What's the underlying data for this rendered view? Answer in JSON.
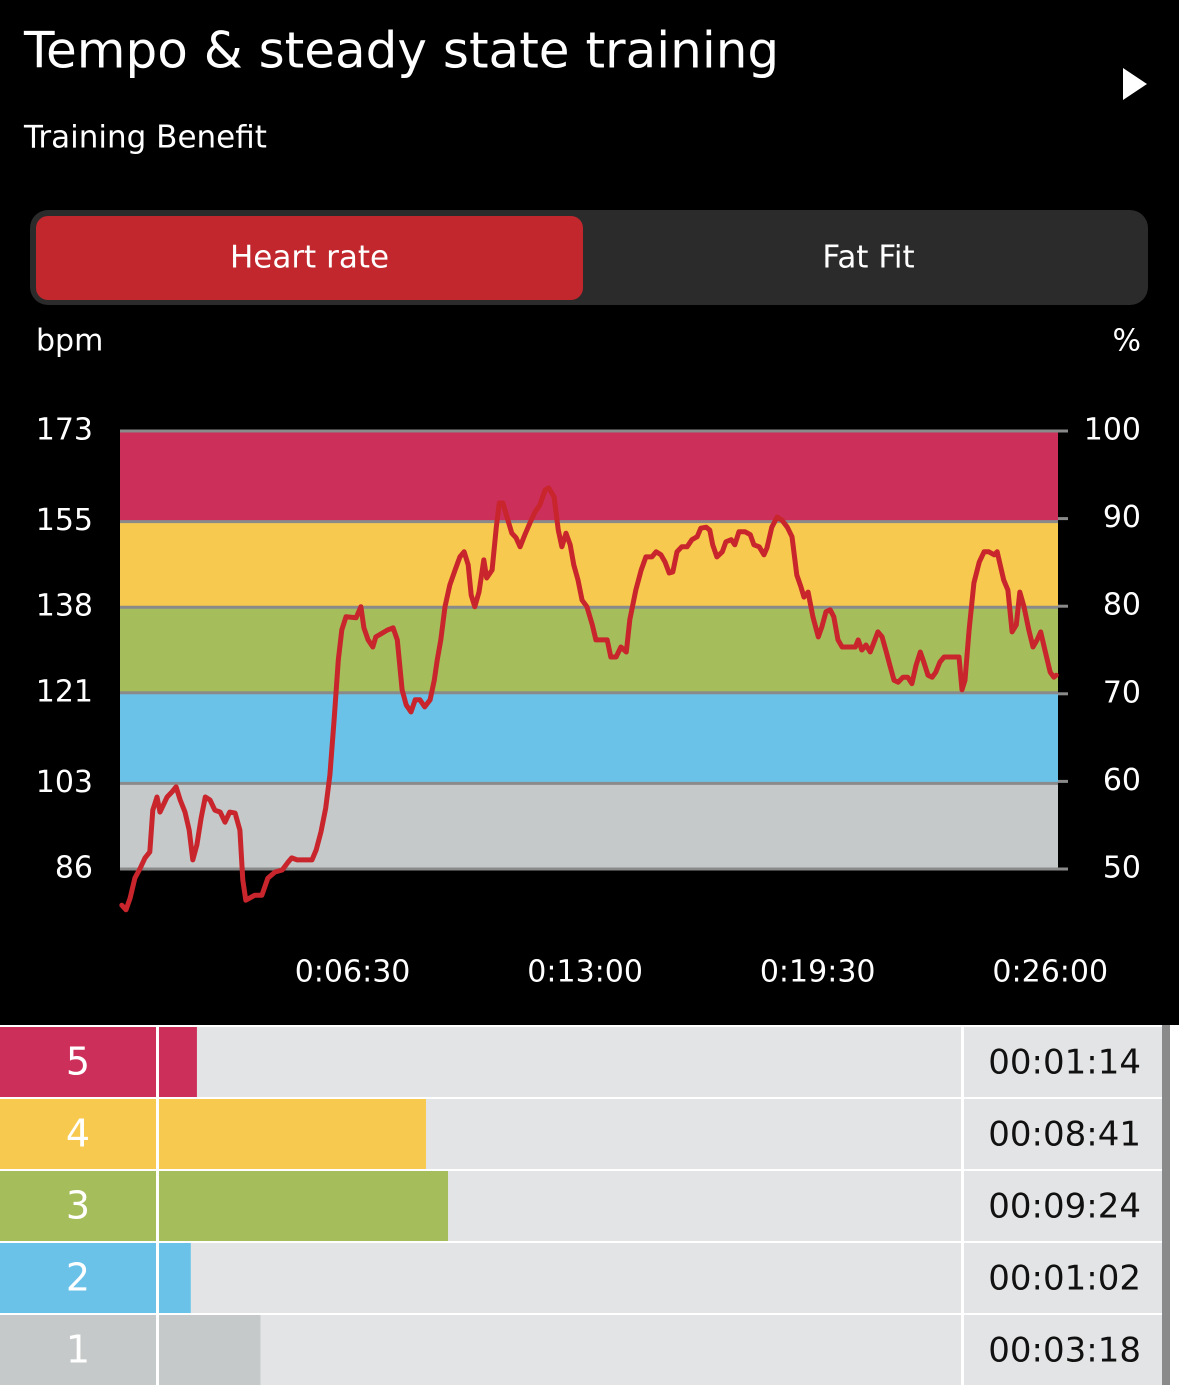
{
  "header": {
    "title": "Tempo & steady state training",
    "subtitle": "Training Benefit"
  },
  "tabs": {
    "items": [
      "Heart rate",
      "Fat Fit"
    ],
    "active": 0
  },
  "chart_data": {
    "type": "line",
    "ylabel": "bpm",
    "y2label": "%",
    "x": [
      3,
      10,
      17,
      25,
      34,
      42,
      50,
      55,
      62,
      67,
      79,
      87,
      94,
      101,
      109,
      116,
      122,
      129,
      136,
      143,
      151,
      159,
      168,
      176,
      184,
      193,
      201,
      206,
      211,
      226,
      238,
      248,
      260,
      272,
      282,
      288,
      297,
      322,
      329,
      337,
      345,
      352,
      359,
      366,
      372,
      379,
      396,
      404,
      409,
      416,
      424,
      429,
      449,
      458,
      465,
      473,
      480,
      488,
      495,
      503,
      511,
      520,
      527,
      532,
      538,
      545,
      553,
      562,
      570,
      577,
      584,
      589,
      595,
      602,
      610,
      615,
      624,
      631,
      636,
      642,
      649,
      657,
      664,
      671,
      679,
      688,
      696,
      704,
      713,
      719,
      728,
      735,
      741,
      748,
      755,
      761,
      768,
      775,
      783,
      792,
      798,
      817,
      823,
      832,
      840,
      849,
      855,
      865,
      874,
      882,
      892,
      899,
      907,
      914,
      921,
      927,
      934,
      942,
      951,
      959,
      968,
      974,
      983,
      989,
      994,
      1001,
      1010,
      1016,
      1025,
      1031,
      1038,
      1048,
      1057,
      1063,
      1072,
      1080,
      1085,
      1093,
      1102,
      1110,
      1119,
      1127,
      1135,
      1142,
      1147,
      1154,
      1162,
      1171,
      1177,
      1184,
      1191,
      1197,
      1204,
      1211,
      1233,
      1238,
      1244,
      1251,
      1258,
      1264,
      1271,
      1278,
      1285,
      1291,
      1298,
      1305,
      1313,
      1321,
      1328,
      1335,
      1342,
      1348,
      1355,
      1362,
      1368,
      1375,
      1382,
      1407,
      1412,
      1417,
      1424,
      1432,
      1441,
      1449,
      1457,
      1466,
      1471,
      1476,
      1482,
      1489,
      1496,
      1503,
      1509,
      1516,
      1524,
      1531,
      1538,
      1544,
      1551,
      1560,
      1566,
      1570
    ],
    "series": [
      {
        "color": "#c9252c",
        "values": [
          78.8,
          77.9,
          80.2,
          84.2,
          86.2,
          88.2,
          89.4,
          97.7,
          100.3,
          97.3,
          100.3,
          101.3,
          102.3,
          99.7,
          97.3,
          93.7,
          87.8,
          90.8,
          96.1,
          100.3,
          99.7,
          97.7,
          97.3,
          95.3,
          97.3,
          97.1,
          93.7,
          83.8,
          79.8,
          80.8,
          80.8,
          84.2,
          85.4,
          85.8,
          87.4,
          88.2,
          87.8,
          87.8,
          89.8,
          93.4,
          98.1,
          104.7,
          115.6,
          127.5,
          133.5,
          136.1,
          135.9,
          138.1,
          133.9,
          131.5,
          130.1,
          132.1,
          133.5,
          133.9,
          131.5,
          121.6,
          118.6,
          117.2,
          119.6,
          119.6,
          118.2,
          119.6,
          123.5,
          127.5,
          131.5,
          138.1,
          142.4,
          145.4,
          148.0,
          149.0,
          146.4,
          140.4,
          138.1,
          141.0,
          147.4,
          143.8,
          145.4,
          153.9,
          158.7,
          158.7,
          155.9,
          152.7,
          151.8,
          150.0,
          152.4,
          154.9,
          156.9,
          158.3,
          161.3,
          161.7,
          159.9,
          153.3,
          150.0,
          152.7,
          150.4,
          146.4,
          143.4,
          139.4,
          138.1,
          134.5,
          131.5,
          131.5,
          128.1,
          128.1,
          130.1,
          129.1,
          135.5,
          141.4,
          145.4,
          148.0,
          148.0,
          149.0,
          148.4,
          147.0,
          144.8,
          145.0,
          149.0,
          150.0,
          150.0,
          151.4,
          152.0,
          153.7,
          153.9,
          153.3,
          150.4,
          148.0,
          149.0,
          151.0,
          151.4,
          150.4,
          153.0,
          153.0,
          152.4,
          150.4,
          150.0,
          148.4,
          149.8,
          153.9,
          155.9,
          155.3,
          153.9,
          152.0,
          144.4,
          142.0,
          140.0,
          141.0,
          136.1,
          132.1,
          134.1,
          137.1,
          137.5,
          136.1,
          131.5,
          130.1,
          130.1,
          131.5,
          129.5,
          130.5,
          129.1,
          130.9,
          133.1,
          132.1,
          129.1,
          126.5,
          123.5,
          123.1,
          124.1,
          124.1,
          122.8,
          126.5,
          129.1,
          127.1,
          124.5,
          124.1,
          125.1,
          127.1,
          128.1,
          128.1,
          121.6,
          123.5,
          133.5,
          142.8,
          147.0,
          149.0,
          149.0,
          148.4,
          149.0,
          146.4,
          143.4,
          141.4,
          133.1,
          134.5,
          141.0,
          138.1,
          133.5,
          130.1,
          131.5,
          133.1,
          129.5,
          125.1,
          124.1,
          124.5
        ]
      }
    ],
    "xlim": [
      0,
      1573
    ],
    "xticks": [
      {
        "value": 390,
        "label": "0:06:30"
      },
      {
        "value": 780,
        "label": "0:13:00"
      },
      {
        "value": 1170,
        "label": "0:19:30"
      },
      {
        "value": 1560,
        "label": "0:26:00"
      }
    ],
    "ylim": [
      86,
      173
    ],
    "yticks": [
      86,
      103,
      121,
      138,
      155,
      173
    ],
    "y2lim": [
      50,
      100
    ],
    "y2ticks": [
      50,
      60,
      70,
      80,
      90,
      100
    ],
    "grid": true
  },
  "zones": {
    "names": [
      "5",
      "4",
      "3",
      "2",
      "1"
    ],
    "colors": [
      "#cc2f5a",
      "#f7c94e",
      "#a6bd5c",
      "#6ac2e8",
      "#c5c9c9"
    ],
    "values": [
      74,
      521,
      564,
      62,
      198
    ],
    "value_labels": [
      "00:01:14",
      "00:08:41",
      "00:09:24",
      "00:01:02",
      "00:03:18"
    ],
    "xlim": [
      0,
      1567
    ]
  }
}
